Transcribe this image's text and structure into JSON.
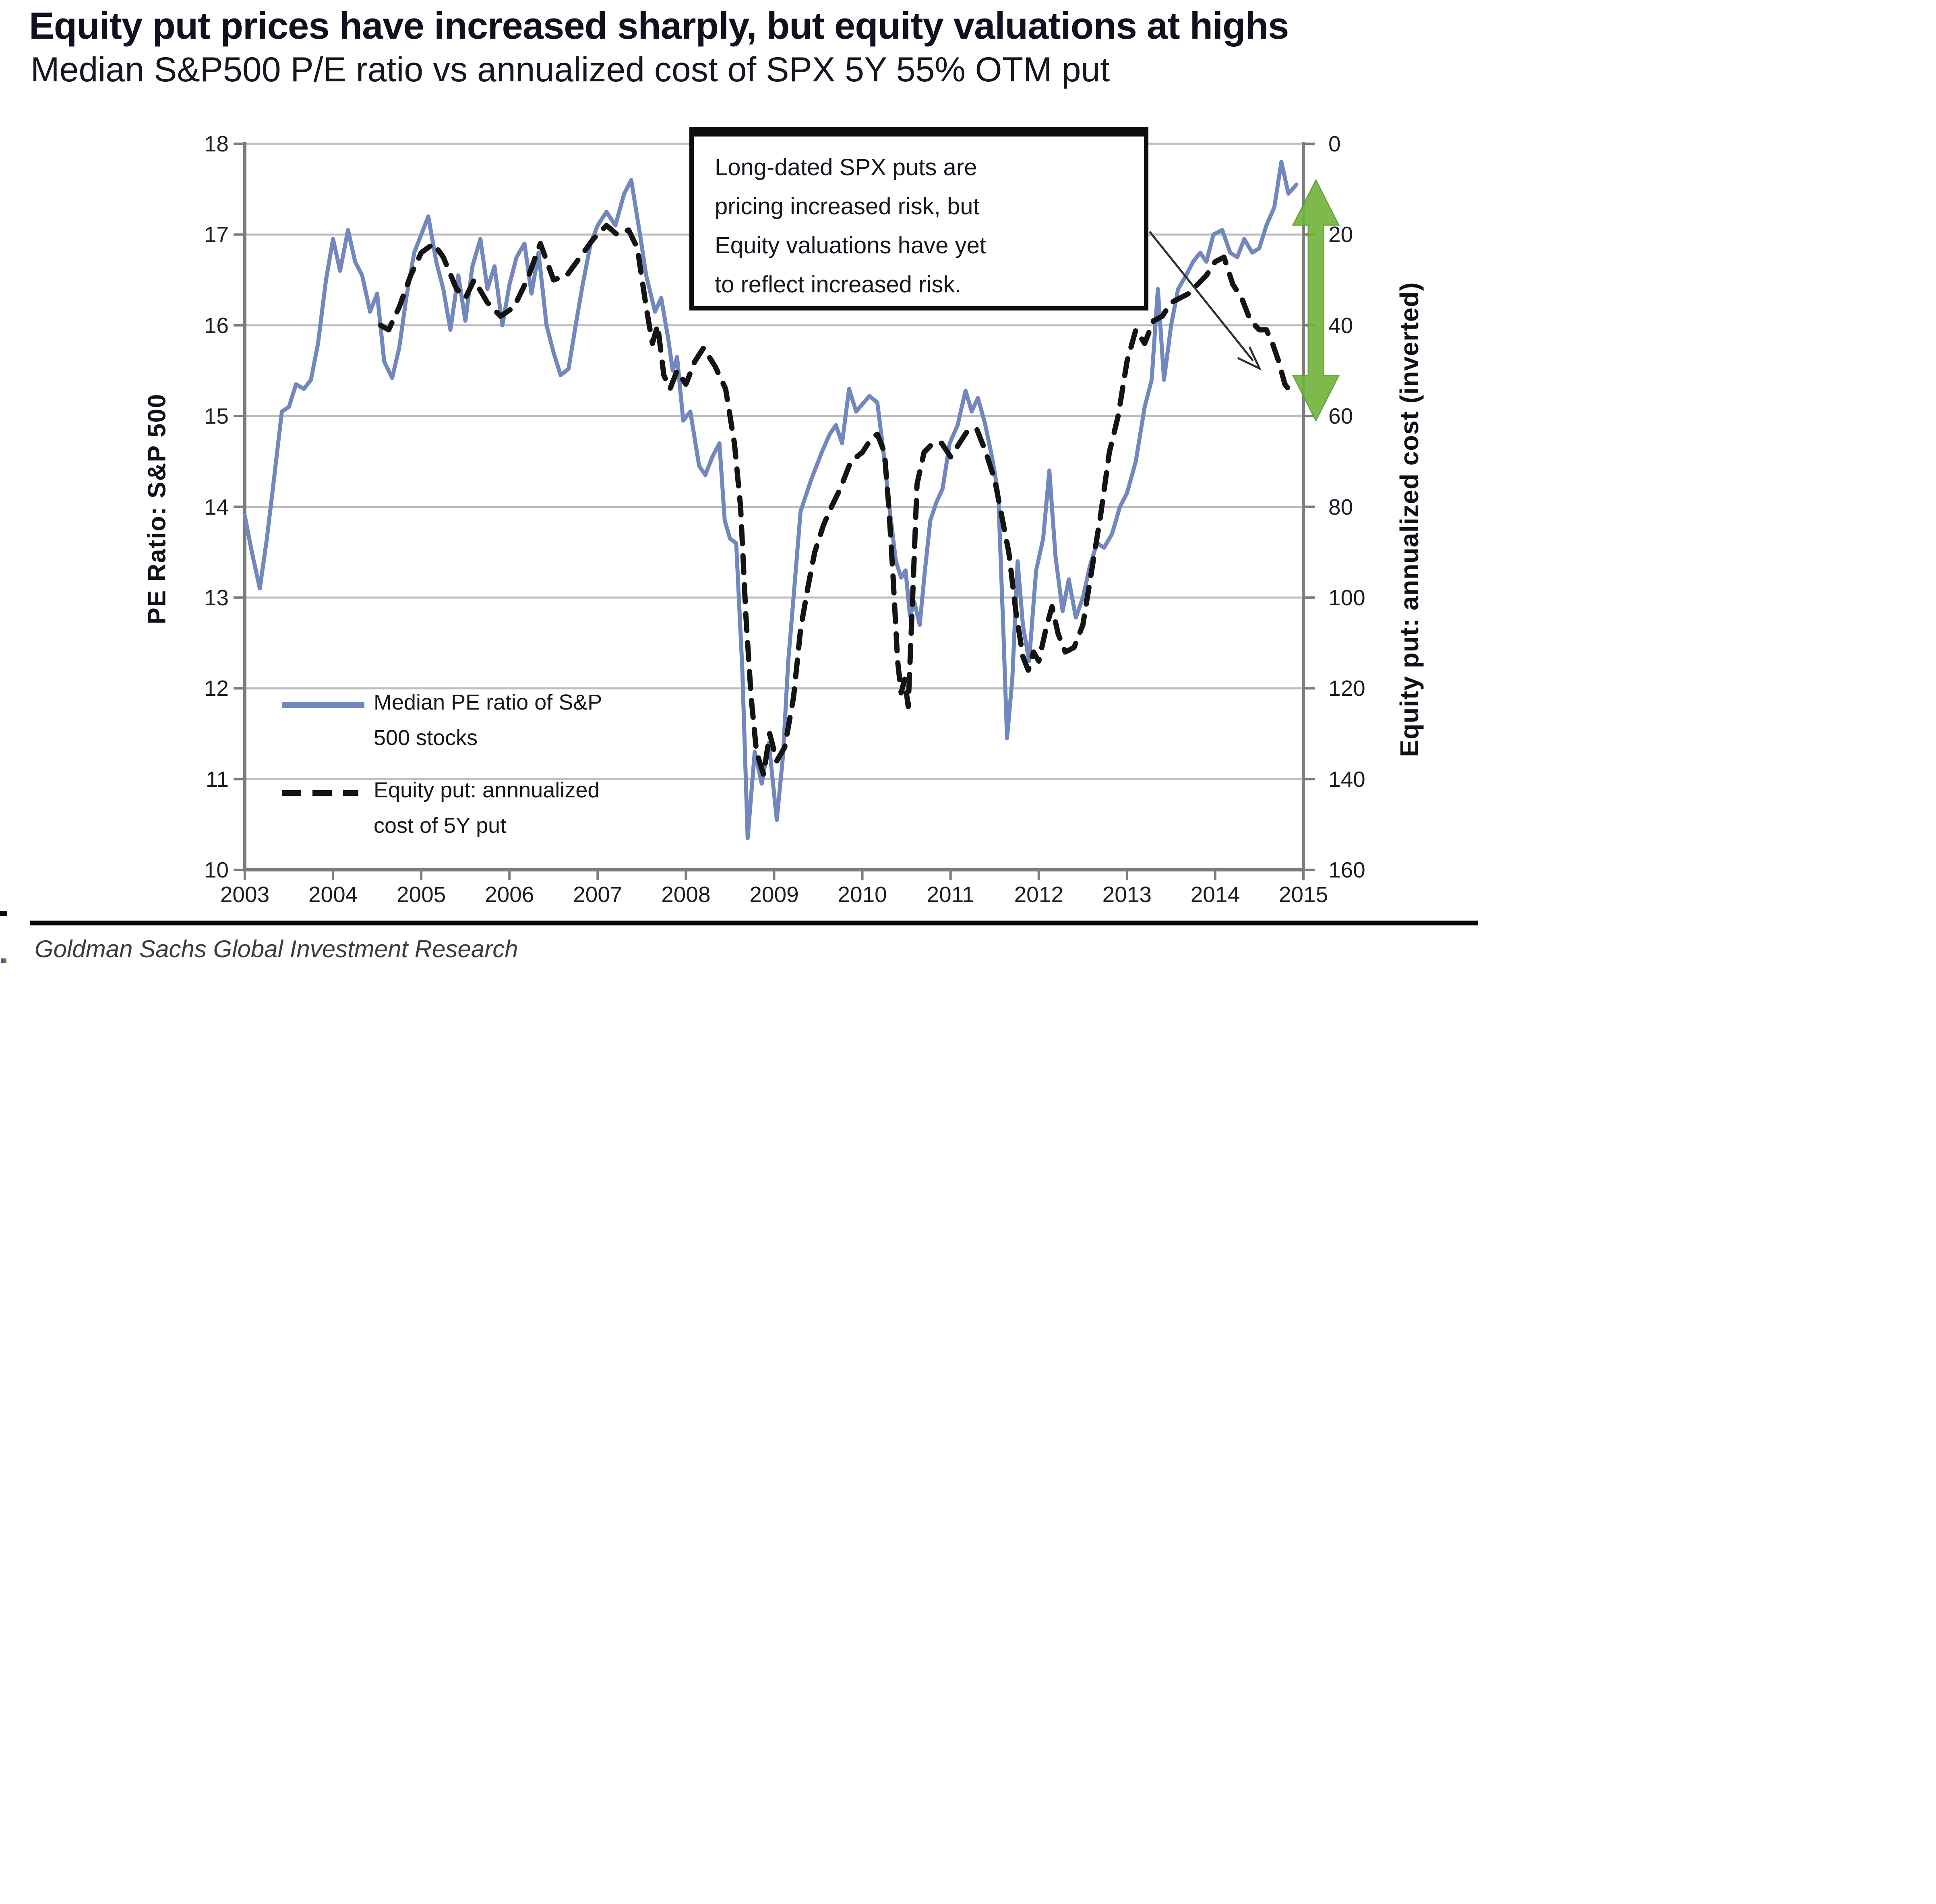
{
  "header": {
    "title": "Equity put prices have increased sharply, but equity valuations at highs",
    "subtitle": "Median S&P500 P/E ratio vs annualized cost of SPX 5Y 55% OTM put"
  },
  "chart": {
    "colors": {
      "pe_line": "#7287bd",
      "put_line": "#141414",
      "grid": "#bdbdbd",
      "axis": "#7d7d7d",
      "green_arrow": "#72b43e",
      "annotation_arrow": "#2e2e2e"
    },
    "legend": [
      {
        "swatch": "solid-blue-line",
        "line1": "Median PE ratio of S&P",
        "line2": "500 stocks"
      },
      {
        "swatch": "dashed-black-line",
        "line1": "Equity put: annnualized",
        "line2": "cost of 5Y put"
      }
    ],
    "annotation": {
      "lines": [
        "Long-dated SPX puts are",
        "pricing increased risk, but",
        "Equity valuations have yet",
        "to reflect increased risk."
      ]
    },
    "green_arrow": {
      "from_right_value": 8,
      "to_right_value": 61
    }
  },
  "chart_data": {
    "type": "line",
    "title": "Median S&P500 P/E ratio vs annualized cost of SPX 5Y 55% OTM put",
    "xlabel": "",
    "x_ticks": [
      2003,
      2004,
      2005,
      2006,
      2007,
      2008,
      2009,
      2010,
      2011,
      2012,
      2013,
      2014,
      2015
    ],
    "x_range": [
      2003,
      2015
    ],
    "left_axis": {
      "label": "PE Ratio: S&P 500",
      "ticks": [
        18,
        17,
        16,
        15,
        14,
        13,
        12,
        11,
        10
      ],
      "min": 10,
      "max": 18
    },
    "right_axis": {
      "label": "Equity put: annualized cost (inverted)",
      "ticks": [
        0,
        20,
        40,
        60,
        80,
        100,
        120,
        140,
        160
      ],
      "min": 0,
      "max": 160,
      "inverted": true
    },
    "grid": true,
    "legend_position": "inside-lower-left",
    "series": [
      {
        "name": "Median PE ratio of S&P 500 stocks",
        "axis": "left",
        "style": "solid",
        "color_key": "pe_line",
        "points": [
          [
            2003.0,
            13.9
          ],
          [
            2003.08,
            13.5
          ],
          [
            2003.17,
            13.1
          ],
          [
            2003.25,
            13.65
          ],
          [
            2003.33,
            14.3
          ],
          [
            2003.42,
            15.05
          ],
          [
            2003.5,
            15.1
          ],
          [
            2003.58,
            15.35
          ],
          [
            2003.67,
            15.3
          ],
          [
            2003.75,
            15.4
          ],
          [
            2003.83,
            15.8
          ],
          [
            2003.92,
            16.5
          ],
          [
            2004.0,
            16.95
          ],
          [
            2004.08,
            16.6
          ],
          [
            2004.17,
            17.05
          ],
          [
            2004.25,
            16.7
          ],
          [
            2004.33,
            16.55
          ],
          [
            2004.42,
            16.15
          ],
          [
            2004.5,
            16.35
          ],
          [
            2004.58,
            15.6
          ],
          [
            2004.67,
            15.42
          ],
          [
            2004.75,
            15.75
          ],
          [
            2004.83,
            16.3
          ],
          [
            2004.92,
            16.8
          ],
          [
            2005.08,
            17.2
          ],
          [
            2005.17,
            16.7
          ],
          [
            2005.25,
            16.4
          ],
          [
            2005.33,
            15.95
          ],
          [
            2005.42,
            16.55
          ],
          [
            2005.5,
            16.05
          ],
          [
            2005.58,
            16.65
          ],
          [
            2005.67,
            16.95
          ],
          [
            2005.75,
            16.4
          ],
          [
            2005.83,
            16.65
          ],
          [
            2005.92,
            16.0
          ],
          [
            2006.0,
            16.45
          ],
          [
            2006.08,
            16.75
          ],
          [
            2006.17,
            16.9
          ],
          [
            2006.25,
            16.35
          ],
          [
            2006.33,
            16.8
          ],
          [
            2006.42,
            16.0
          ],
          [
            2006.5,
            15.7
          ],
          [
            2006.58,
            15.45
          ],
          [
            2006.67,
            15.52
          ],
          [
            2006.75,
            16.0
          ],
          [
            2006.83,
            16.45
          ],
          [
            2006.92,
            16.9
          ],
          [
            2007.0,
            17.1
          ],
          [
            2007.1,
            17.25
          ],
          [
            2007.2,
            17.1
          ],
          [
            2007.3,
            17.45
          ],
          [
            2007.38,
            17.6
          ],
          [
            2007.48,
            17.0
          ],
          [
            2007.55,
            16.55
          ],
          [
            2007.65,
            16.15
          ],
          [
            2007.72,
            16.3
          ],
          [
            2007.8,
            15.85
          ],
          [
            2007.85,
            15.5
          ],
          [
            2007.9,
            15.65
          ],
          [
            2007.97,
            14.95
          ],
          [
            2008.05,
            15.05
          ],
          [
            2008.15,
            14.45
          ],
          [
            2008.22,
            14.35
          ],
          [
            2008.3,
            14.55
          ],
          [
            2008.38,
            14.7
          ],
          [
            2008.44,
            13.85
          ],
          [
            2008.5,
            13.65
          ],
          [
            2008.57,
            13.6
          ],
          [
            2008.64,
            12.2
          ],
          [
            2008.7,
            10.35
          ],
          [
            2008.78,
            11.3
          ],
          [
            2008.86,
            10.95
          ],
          [
            2008.94,
            11.4
          ],
          [
            2009.03,
            10.55
          ],
          [
            2009.1,
            11.25
          ],
          [
            2009.16,
            12.3
          ],
          [
            2009.22,
            13.0
          ],
          [
            2009.3,
            13.95
          ],
          [
            2009.42,
            14.3
          ],
          [
            2009.54,
            14.6
          ],
          [
            2009.63,
            14.8
          ],
          [
            2009.7,
            14.9
          ],
          [
            2009.77,
            14.7
          ],
          [
            2009.85,
            15.3
          ],
          [
            2009.93,
            15.05
          ],
          [
            2010.0,
            15.13
          ],
          [
            2010.08,
            15.22
          ],
          [
            2010.17,
            15.15
          ],
          [
            2010.24,
            14.6
          ],
          [
            2010.3,
            14.05
          ],
          [
            2010.38,
            13.4
          ],
          [
            2010.44,
            13.22
          ],
          [
            2010.49,
            13.3
          ],
          [
            2010.54,
            12.8
          ],
          [
            2010.59,
            12.95
          ],
          [
            2010.65,
            12.7
          ],
          [
            2010.71,
            13.3
          ],
          [
            2010.77,
            13.85
          ],
          [
            2010.84,
            14.05
          ],
          [
            2010.91,
            14.2
          ],
          [
            2010.99,
            14.7
          ],
          [
            2011.08,
            14.9
          ],
          [
            2011.17,
            15.28
          ],
          [
            2011.24,
            15.05
          ],
          [
            2011.31,
            15.2
          ],
          [
            2011.39,
            14.92
          ],
          [
            2011.47,
            14.55
          ],
          [
            2011.54,
            14.15
          ],
          [
            2011.6,
            12.6
          ],
          [
            2011.64,
            11.45
          ],
          [
            2011.7,
            12.1
          ],
          [
            2011.76,
            13.4
          ],
          [
            2011.82,
            12.7
          ],
          [
            2011.89,
            12.3
          ],
          [
            2011.97,
            13.3
          ],
          [
            2012.05,
            13.65
          ],
          [
            2012.12,
            14.4
          ],
          [
            2012.19,
            13.45
          ],
          [
            2012.27,
            12.85
          ],
          [
            2012.34,
            13.2
          ],
          [
            2012.42,
            12.78
          ],
          [
            2012.5,
            13.0
          ],
          [
            2012.58,
            13.35
          ],
          [
            2012.66,
            13.6
          ],
          [
            2012.74,
            13.55
          ],
          [
            2012.83,
            13.7
          ],
          [
            2012.92,
            14.0
          ],
          [
            2013.0,
            14.15
          ],
          [
            2013.1,
            14.5
          ],
          [
            2013.2,
            15.1
          ],
          [
            2013.28,
            15.4
          ],
          [
            2013.35,
            16.4
          ],
          [
            2013.42,
            15.4
          ],
          [
            2013.5,
            16.0
          ],
          [
            2013.58,
            16.4
          ],
          [
            2013.67,
            16.55
          ],
          [
            2013.75,
            16.7
          ],
          [
            2013.83,
            16.8
          ],
          [
            2013.9,
            16.7
          ],
          [
            2013.98,
            17.0
          ],
          [
            2014.08,
            17.05
          ],
          [
            2014.17,
            16.8
          ],
          [
            2014.25,
            16.75
          ],
          [
            2014.33,
            16.95
          ],
          [
            2014.42,
            16.8
          ],
          [
            2014.5,
            16.85
          ],
          [
            2014.58,
            17.1
          ],
          [
            2014.67,
            17.3
          ],
          [
            2014.75,
            17.8
          ],
          [
            2014.83,
            17.45
          ],
          [
            2014.92,
            17.55
          ]
        ]
      },
      {
        "name": "Equity put: annnualized cost of 5Y put",
        "axis": "right",
        "style": "dashed",
        "color_key": "put_line",
        "points": [
          [
            2004.54,
            40
          ],
          [
            2004.63,
            41
          ],
          [
            2004.75,
            36
          ],
          [
            2004.88,
            29
          ],
          [
            2005.0,
            24
          ],
          [
            2005.14,
            22
          ],
          [
            2005.25,
            25
          ],
          [
            2005.4,
            32
          ],
          [
            2005.5,
            34
          ],
          [
            2005.6,
            30
          ],
          [
            2005.75,
            35
          ],
          [
            2005.9,
            38
          ],
          [
            2006.05,
            36
          ],
          [
            2006.2,
            30
          ],
          [
            2006.35,
            22
          ],
          [
            2006.5,
            30
          ],
          [
            2006.65,
            29
          ],
          [
            2006.8,
            25
          ],
          [
            2006.95,
            21
          ],
          [
            2007.1,
            18
          ],
          [
            2007.22,
            20
          ],
          [
            2007.35,
            19
          ],
          [
            2007.45,
            23
          ],
          [
            2007.55,
            36
          ],
          [
            2007.62,
            44
          ],
          [
            2007.68,
            40
          ],
          [
            2007.75,
            51
          ],
          [
            2007.82,
            54
          ],
          [
            2007.9,
            50
          ],
          [
            2008.0,
            53
          ],
          [
            2008.1,
            48
          ],
          [
            2008.2,
            45
          ],
          [
            2008.33,
            49
          ],
          [
            2008.45,
            54
          ],
          [
            2008.55,
            66
          ],
          [
            2008.62,
            80
          ],
          [
            2008.68,
            104
          ],
          [
            2008.74,
            122
          ],
          [
            2008.8,
            134
          ],
          [
            2008.88,
            139
          ],
          [
            2008.95,
            130
          ],
          [
            2009.03,
            136
          ],
          [
            2009.12,
            133
          ],
          [
            2009.22,
            122
          ],
          [
            2009.3,
            107
          ],
          [
            2009.38,
            98
          ],
          [
            2009.46,
            90
          ],
          [
            2009.56,
            84
          ],
          [
            2009.65,
            80
          ],
          [
            2009.75,
            76
          ],
          [
            2009.87,
            70
          ],
          [
            2010.0,
            68
          ],
          [
            2010.1,
            65
          ],
          [
            2010.17,
            64
          ],
          [
            2010.25,
            68
          ],
          [
            2010.3,
            80
          ],
          [
            2010.35,
            96
          ],
          [
            2010.4,
            114
          ],
          [
            2010.44,
            121
          ],
          [
            2010.48,
            118
          ],
          [
            2010.52,
            124
          ],
          [
            2010.57,
            100
          ],
          [
            2010.62,
            75
          ],
          [
            2010.7,
            68
          ],
          [
            2010.8,
            66
          ],
          [
            2010.9,
            66
          ],
          [
            2011.0,
            69
          ],
          [
            2011.1,
            66
          ],
          [
            2011.2,
            63
          ],
          [
            2011.3,
            63
          ],
          [
            2011.4,
            68
          ],
          [
            2011.5,
            74
          ],
          [
            2011.58,
            82
          ],
          [
            2011.66,
            90
          ],
          [
            2011.74,
            103
          ],
          [
            2011.82,
            113
          ],
          [
            2011.88,
            116
          ],
          [
            2011.94,
            112
          ],
          [
            2012.0,
            114
          ],
          [
            2012.08,
            107
          ],
          [
            2012.15,
            102
          ],
          [
            2012.22,
            108
          ],
          [
            2012.3,
            112
          ],
          [
            2012.4,
            111
          ],
          [
            2012.5,
            106
          ],
          [
            2012.6,
            94
          ],
          [
            2012.7,
            82
          ],
          [
            2012.8,
            68
          ],
          [
            2012.9,
            60
          ],
          [
            2013.0,
            48
          ],
          [
            2013.1,
            41
          ],
          [
            2013.2,
            44
          ],
          [
            2013.3,
            39
          ],
          [
            2013.4,
            38
          ],
          [
            2013.5,
            35
          ],
          [
            2013.6,
            34
          ],
          [
            2013.7,
            33
          ],
          [
            2013.8,
            31
          ],
          [
            2013.9,
            29
          ],
          [
            2014.0,
            26
          ],
          [
            2014.1,
            25
          ],
          [
            2014.2,
            31
          ],
          [
            2014.3,
            34
          ],
          [
            2014.4,
            39
          ],
          [
            2014.5,
            41
          ],
          [
            2014.58,
            41
          ],
          [
            2014.65,
            44
          ],
          [
            2014.72,
            48
          ],
          [
            2014.79,
            53
          ],
          [
            2014.87,
            55
          ]
        ]
      }
    ]
  },
  "footer": {
    "source": "Goldman Sachs Global Investment Research"
  }
}
